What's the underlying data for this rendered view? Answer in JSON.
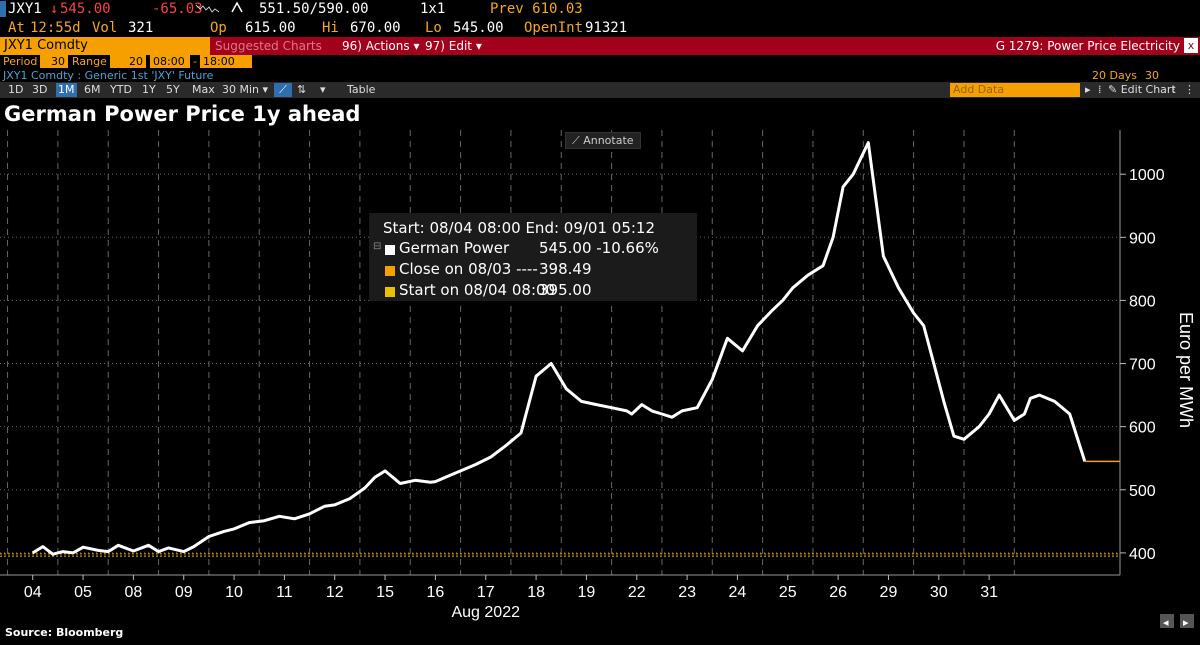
{
  "quote": {
    "ticker": "JXY1",
    "last": "545.00",
    "change": "-65.03",
    "bid_ask": "551.50/590.00",
    "size": "1x1",
    "prev": "Prev 610.03",
    "at_label": "At",
    "at_time": "12:55d",
    "vol_label": "Vol",
    "vol": "321",
    "open_label": "Op",
    "open": "615.00",
    "hi_label": "Hi",
    "hi": "670.00",
    "lo_label": "Lo",
    "lo": "545.00",
    "openint_label": "OpenInt",
    "openint": "91321"
  },
  "command_bar": {
    "security": "JXY1 Comdty",
    "suggested": "Suggested Charts",
    "actions": "96) Actions",
    "edit": "97) Edit",
    "chart_id": "G 1279: Power Price Electricity",
    "close": "x"
  },
  "period": {
    "period_label": "Period",
    "period_value": "30",
    "range_label": "Range",
    "range_value": "20",
    "from": "08:00",
    "to": "18:00"
  },
  "subline": {
    "description": "JXY1 Comdty : Generic 1st 'JXY' Future",
    "days": "20 Days",
    "interval": "30 Minutes"
  },
  "toolbar": {
    "buttons": [
      "1D",
      "3D",
      "1M",
      "6M",
      "YTD",
      "1Y",
      "5Y",
      "Max",
      "30 Min"
    ],
    "active": "1M",
    "table": "Table",
    "add_data": "Add Data",
    "edit_chart": "Edit Chart"
  },
  "annotate": "Annotate",
  "tooltip": {
    "range": "Start: 08/04 08:00 End: 09/01 05:12",
    "rows": [
      {
        "label": "German Power",
        "value": "545.00  -10.66%",
        "color": "#ffffff"
      },
      {
        "label": "Close on 08/03 ----",
        "value": "398.49",
        "color": "#f5a000"
      },
      {
        "label": "Start on 08/04 08:00",
        "value": "395.00",
        "color": "#e8c000"
      }
    ]
  },
  "source": "Source: Bloomberg",
  "colors": {
    "line": "#ffffff",
    "last_price": "#f5a000",
    "start_ref": "#e8c000",
    "grid": "#666666"
  },
  "chart_data": {
    "type": "line",
    "title": "German Power Price 1y ahead",
    "xlabel": "Aug 2022",
    "ylabel": "Euro per MWh",
    "ylim": [
      365,
      1070
    ],
    "yticks": [
      400,
      500,
      600,
      700,
      800,
      900,
      1000
    ],
    "xticks": [
      "04",
      "05",
      "08",
      "09",
      "10",
      "11",
      "12",
      "15",
      "16",
      "17",
      "18",
      "19",
      "22",
      "23",
      "24",
      "25",
      "26",
      "29",
      "30",
      "31"
    ],
    "grid": true,
    "reference_lines": [
      {
        "name": "Close on 08/03",
        "value": 398.49
      },
      {
        "name": "Start on 08/04 08:00",
        "value": 395.0
      }
    ],
    "last_value": 545.0,
    "series": [
      {
        "name": "German Power",
        "x": [
          0,
          0.2,
          0.4,
          0.6,
          0.8,
          1.0,
          1.3,
          1.5,
          1.7,
          2.0,
          2.3,
          2.5,
          2.7,
          3.0,
          3.2,
          3.5,
          3.8,
          4.0,
          4.3,
          4.6,
          4.9,
          5.2,
          5.5,
          5.8,
          6.0,
          6.3,
          6.6,
          6.8,
          7.0,
          7.3,
          7.6,
          7.9,
          8.0,
          8.2,
          8.5,
          8.8,
          9.1,
          9.4,
          9.7,
          10.0,
          10.3,
          10.6,
          10.9,
          11.2,
          11.5,
          11.8,
          11.9,
          12.1,
          12.3,
          12.5,
          12.7,
          12.9,
          13.2,
          13.5,
          13.8,
          14.1,
          14.4,
          14.7,
          14.9,
          15.1,
          15.4,
          15.7,
          15.9,
          16.1,
          16.3,
          16.6,
          16.9,
          17.2,
          17.5,
          17.7,
          17.9,
          18.1,
          18.3,
          18.5,
          18.8,
          19.0,
          19.2,
          19.5,
          19.7,
          19.82,
          20.0,
          20.3,
          20.6,
          20.9
        ],
        "values": [
          400,
          410,
          398,
          402,
          400,
          409,
          404,
          402,
          412,
          403,
          412,
          402,
          408,
          402,
          410,
          426,
          434,
          438,
          448,
          451,
          458,
          454,
          462,
          474,
          476,
          486,
          503,
          520,
          530,
          510,
          515,
          512,
          513,
          520,
          530,
          540,
          552,
          570,
          590,
          680,
          700,
          660,
          640,
          635,
          630,
          625,
          620,
          635,
          625,
          620,
          615,
          625,
          630,
          675,
          740,
          720,
          760,
          785,
          800,
          820,
          840,
          855,
          900,
          980,
          1000,
          1050,
          870,
          820,
          780,
          760,
          700,
          640,
          585,
          580,
          600,
          620,
          650,
          610,
          620,
          645,
          650,
          640,
          620,
          545
        ]
      }
    ]
  }
}
